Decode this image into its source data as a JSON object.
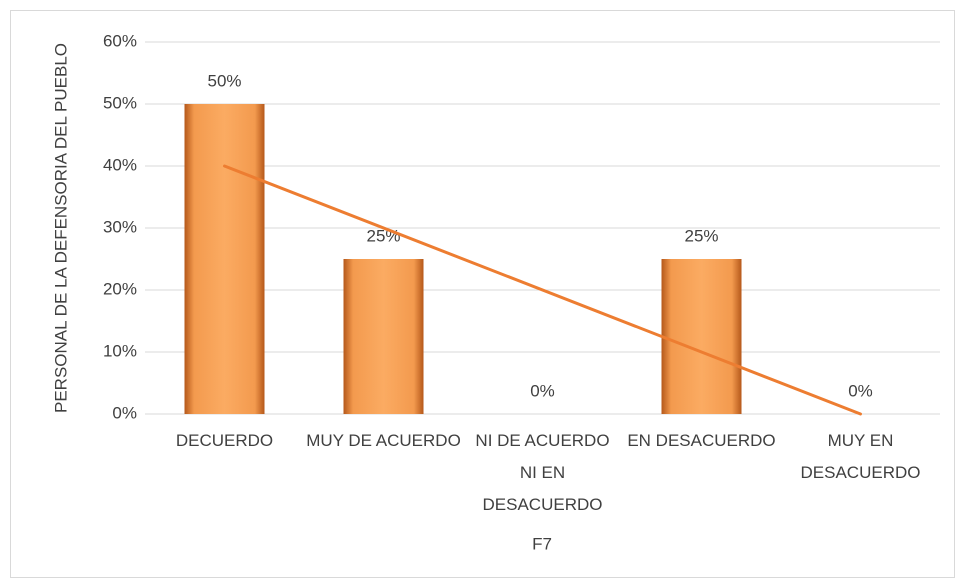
{
  "chart_data": {
    "type": "bar",
    "y_label": "PERSONAL DE LA DEFENSORIA DEL PUEBLO",
    "x_label": "F7",
    "categories": [
      "DECUERDO",
      "MUY DE ACUERDO",
      "NI DE ACUERDO NI EN DESACUERDO",
      "EN DESACUERDO",
      "MUY EN DESACUERDO"
    ],
    "values": [
      50,
      25,
      0,
      25,
      0
    ],
    "value_labels": [
      "50%",
      "25%",
      "0%",
      "25%",
      "0%"
    ],
    "color": "#f79646",
    "trendline": "linear",
    "trendline_color": "#ed7d31",
    "ylim": [
      0,
      60
    ],
    "yticks": [
      {
        "value": 0,
        "label": "0%"
      },
      {
        "value": 10,
        "label": "10%"
      },
      {
        "value": 20,
        "label": "20%"
      },
      {
        "value": 30,
        "label": "30%"
      },
      {
        "value": 40,
        "label": "40%"
      },
      {
        "value": 50,
        "label": "50%"
      },
      {
        "value": 60,
        "label": "60%"
      }
    ],
    "grid": true
  }
}
